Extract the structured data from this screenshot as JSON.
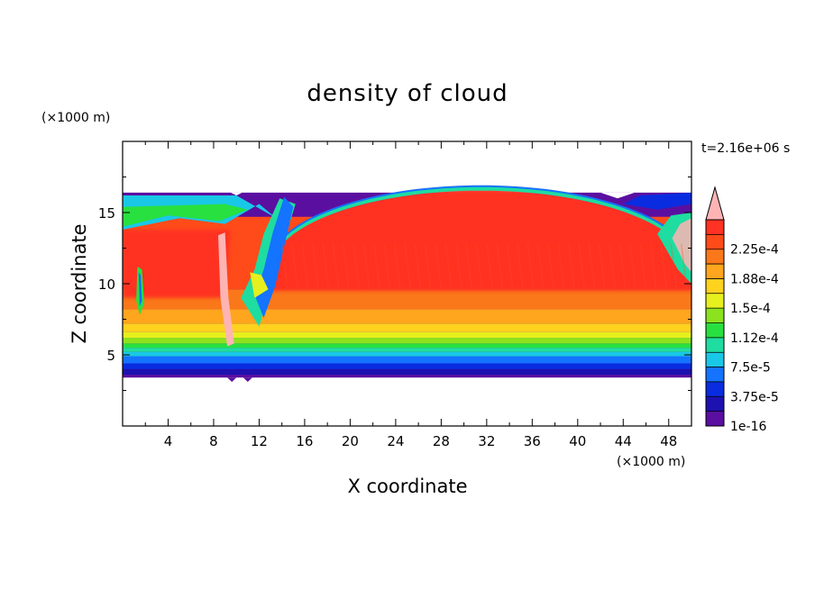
{
  "chart_data": {
    "type": "heatmap",
    "title": "density of cloud",
    "xlabel": "X coordinate",
    "ylabel": "Z coordinate",
    "x_unit": "(×1000 m)",
    "y_unit": "(×1000 m)",
    "time_label": "t=2.16e+06 s",
    "xlim": [
      0,
      50
    ],
    "ylim": [
      0,
      20
    ],
    "x_ticks": [
      4,
      8,
      12,
      16,
      20,
      24,
      28,
      32,
      36,
      40,
      44,
      48
    ],
    "y_ticks": [
      5,
      10,
      15
    ],
    "cloud_base_z": 3.4,
    "cloud_top_z_flat": 16.4,
    "cloud_top_z_max": 16.9,
    "colorbar": {
      "levels": [
        "1e-16",
        "3.75e-5",
        "7.5e-5",
        "1.12e-4",
        "1.5e-4",
        "1.88e-4",
        "2.25e-4"
      ],
      "colors": [
        "#5b0fa0",
        "#1d12b0",
        "#0a2ce0",
        "#1473ff",
        "#19c8e6",
        "#1fdca0",
        "#28e040",
        "#8ce21e",
        "#e6f01e",
        "#ffd21e",
        "#ffa51e",
        "#fa7819",
        "#ff4b19",
        "#ff3223",
        "#ffb4b4"
      ],
      "extend": "max"
    }
  }
}
